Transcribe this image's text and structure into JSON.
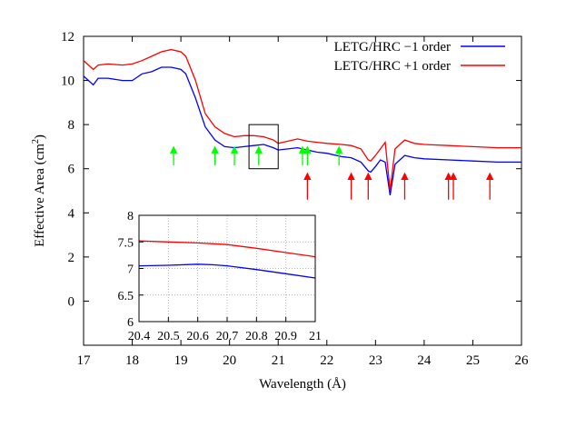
{
  "chart_data": [
    {
      "type": "line",
      "xlabel": "Wavelength (Å)",
      "ylabel": "Effective Area (cm",
      "ylabel_sup": "2",
      "ylabel_close": ")",
      "xlim": [
        17,
        26
      ],
      "ylim": [
        -2,
        12
      ],
      "xticks": [
        17,
        18,
        19,
        20,
        21,
        22,
        23,
        24,
        25,
        26
      ],
      "yticks": [
        0,
        2,
        4,
        6,
        8,
        10,
        12
      ],
      "grid": false,
      "legend": "top-right",
      "series": [
        {
          "name": "LETG/HRC −1 order",
          "color": "#0000ff",
          "x": [
            17.0,
            17.1,
            17.2,
            17.3,
            17.5,
            17.8,
            18.0,
            18.2,
            18.4,
            18.6,
            18.8,
            19.0,
            19.1,
            19.3,
            19.5,
            19.7,
            19.9,
            20.1,
            20.3,
            20.5,
            20.7,
            20.9,
            21.0,
            21.2,
            21.4,
            21.6,
            21.8,
            22.0,
            22.3,
            22.5,
            22.7,
            22.85,
            22.9,
            23.0,
            23.1,
            23.2,
            23.3,
            23.4,
            23.5,
            23.6,
            23.8,
            24.0,
            24.5,
            25.0,
            25.5,
            26.0
          ],
          "y": [
            10.2,
            10.0,
            9.8,
            10.1,
            10.1,
            10.0,
            10.0,
            10.3,
            10.4,
            10.6,
            10.6,
            10.5,
            10.3,
            9.2,
            7.9,
            7.3,
            7.0,
            6.95,
            7.0,
            7.05,
            7.1,
            6.95,
            6.85,
            6.9,
            6.95,
            6.85,
            6.75,
            6.7,
            6.55,
            6.5,
            6.3,
            5.9,
            5.85,
            6.1,
            6.4,
            6.3,
            4.8,
            6.2,
            6.4,
            6.6,
            6.5,
            6.45,
            6.4,
            6.35,
            6.3,
            6.3
          ]
        },
        {
          "name": "LETG/HRC +1 order",
          "color": "#ff0000",
          "x": [
            17.0,
            17.1,
            17.2,
            17.3,
            17.5,
            17.8,
            18.0,
            18.2,
            18.4,
            18.6,
            18.8,
            19.0,
            19.1,
            19.3,
            19.5,
            19.7,
            19.9,
            20.1,
            20.3,
            20.5,
            20.7,
            20.9,
            21.0,
            21.2,
            21.4,
            21.6,
            21.8,
            22.0,
            22.3,
            22.5,
            22.7,
            22.85,
            22.9,
            23.0,
            23.1,
            23.2,
            23.3,
            23.4,
            23.5,
            23.6,
            23.8,
            24.0,
            24.5,
            25.0,
            25.5,
            26.0
          ],
          "y": [
            10.9,
            10.7,
            10.5,
            10.7,
            10.75,
            10.7,
            10.75,
            10.9,
            11.1,
            11.3,
            11.4,
            11.3,
            11.1,
            10.0,
            8.5,
            7.9,
            7.6,
            7.45,
            7.5,
            7.5,
            7.45,
            7.3,
            7.15,
            7.25,
            7.35,
            7.25,
            7.2,
            7.15,
            7.1,
            7.05,
            6.9,
            6.4,
            6.35,
            6.6,
            6.9,
            7.2,
            5.0,
            6.9,
            7.1,
            7.3,
            7.15,
            7.1,
            7.05,
            7.0,
            6.95,
            6.95
          ]
        }
      ],
      "zoom_box": {
        "x": [
          20.4,
          21.0
        ],
        "y": [
          6,
          8
        ]
      },
      "green_arrows": [
        {
          "x": 18.85,
          "y_tip": 7.0,
          "y_tail": 6.15,
          "color": "#00ff00"
        },
        {
          "x": 19.7,
          "y_tip": 7.0,
          "y_tail": 6.15,
          "color": "#00ff00"
        },
        {
          "x": 20.1,
          "y_tip": 7.0,
          "y_tail": 6.15,
          "color": "#00ff00"
        },
        {
          "x": 20.6,
          "y_tip": 7.0,
          "y_tail": 6.15,
          "color": "#00ff00"
        },
        {
          "x": 21.5,
          "y_tip": 7.0,
          "y_tail": 6.15,
          "color": "#00ff00"
        },
        {
          "x": 21.6,
          "y_tip": 7.0,
          "y_tail": 6.15,
          "color": "#00ff00"
        },
        {
          "x": 22.25,
          "y_tip": 7.0,
          "y_tail": 6.15,
          "color": "#00ff00"
        }
      ],
      "red_arrows": [
        {
          "x": 21.6,
          "y_tip": 5.8,
          "y_tail": 4.6,
          "color": "#ff0000"
        },
        {
          "x": 22.5,
          "y_tip": 5.8,
          "y_tail": 4.6,
          "color": "#ff0000"
        },
        {
          "x": 22.85,
          "y_tip": 5.8,
          "y_tail": 4.6,
          "color": "#ff0000"
        },
        {
          "x": 23.6,
          "y_tip": 5.8,
          "y_tail": 4.6,
          "color": "#ff0000"
        },
        {
          "x": 24.5,
          "y_tip": 5.8,
          "y_tail": 4.6,
          "color": "#ff0000"
        },
        {
          "x": 24.6,
          "y_tip": 5.8,
          "y_tail": 4.6,
          "color": "#ff0000"
        },
        {
          "x": 25.35,
          "y_tip": 5.8,
          "y_tail": 4.6,
          "color": "#ff0000"
        }
      ]
    },
    {
      "type": "line",
      "role": "inset",
      "xlim": [
        20.4,
        21.0
      ],
      "ylim": [
        6,
        8
      ],
      "xticks": [
        20.4,
        20.5,
        20.6,
        20.7,
        20.8,
        20.9,
        21.0
      ],
      "xtick_labels": [
        "20.4",
        "20.5",
        "20.6",
        "20.7",
        "20.8",
        "20.9",
        "21"
      ],
      "yticks": [
        6,
        6.5,
        7,
        7.5,
        8
      ],
      "ytick_labels": [
        "6",
        "6.5",
        "7",
        "7.5",
        "8"
      ],
      "grid": true,
      "series": [
        {
          "name": "LETG/HRC +1 order",
          "color": "#ff0000",
          "x": [
            20.4,
            20.5,
            20.6,
            20.7,
            20.8,
            20.9,
            21.0
          ],
          "y": [
            7.52,
            7.5,
            7.48,
            7.45,
            7.38,
            7.3,
            7.22
          ]
        },
        {
          "name": "LETG/HRC −1 order",
          "color": "#0000ff",
          "x": [
            20.4,
            20.5,
            20.6,
            20.65,
            20.7,
            20.8,
            20.9,
            21.0
          ],
          "y": [
            7.05,
            7.06,
            7.08,
            7.07,
            7.05,
            6.98,
            6.9,
            6.82
          ]
        }
      ]
    }
  ]
}
